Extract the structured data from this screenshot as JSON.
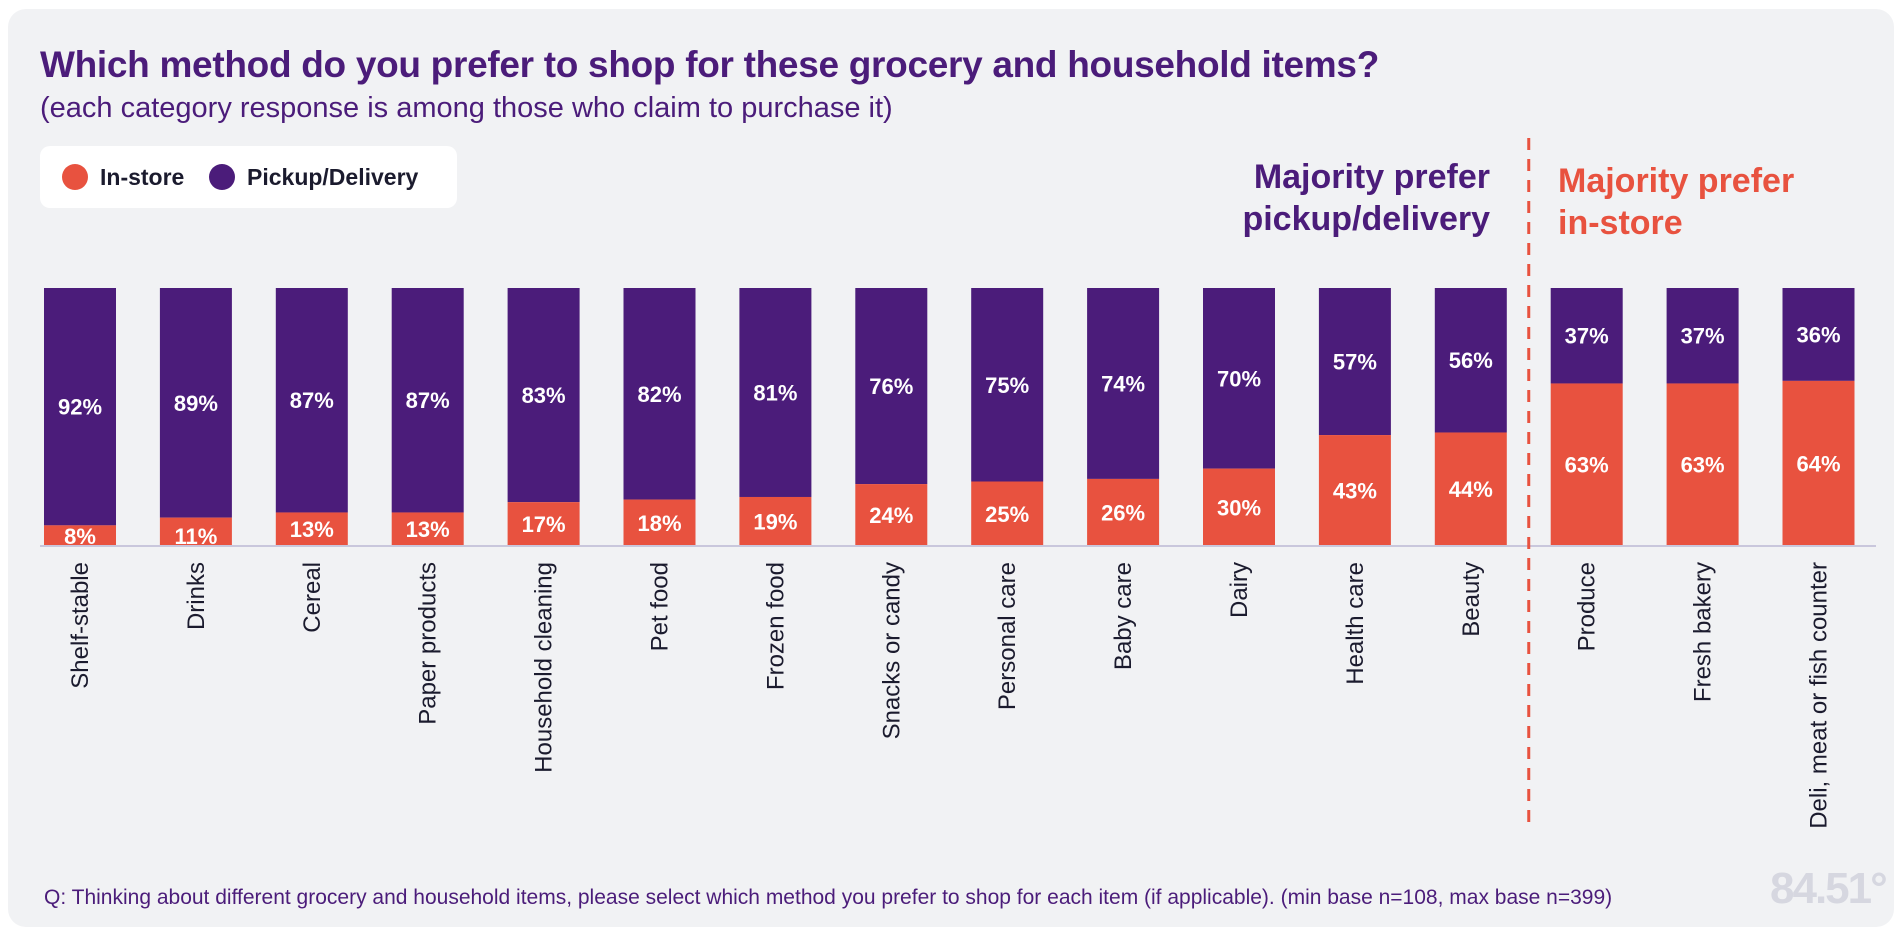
{
  "title": "Which method do you prefer to shop for these grocery and household items?",
  "subtitle": "(each category response is among those who claim to purchase it)",
  "legend": {
    "instore_label": "In-store",
    "pickup_label": "Pickup/Delivery"
  },
  "annotations": {
    "pickup_majority": [
      "Majority prefer",
      "pickup/delivery"
    ],
    "instore_majority": [
      "Majority prefer",
      "in-store"
    ]
  },
  "footnote": "Q: Thinking about different grocery and household items, please select which method you prefer to shop for each item (if applicable). (min base n=108, max base n=399)",
  "logo_text": "84.51°",
  "colors": {
    "instore": "#e8523f",
    "pickup": "#4b1c7a",
    "background": "#f1f2f4",
    "axis": "#c9c7dc"
  },
  "chart_data": {
    "type": "bar",
    "stacked": true,
    "orientation": "vertical",
    "ylim": [
      0,
      100
    ],
    "categories": [
      "Shelf-stable",
      "Drinks",
      "Cereal",
      "Paper products",
      "Household cleaning",
      "Pet food",
      "Frozen food",
      "Snacks or candy",
      "Personal care",
      "Baby care",
      "Dairy",
      "Health care",
      "Beauty",
      "Produce",
      "Fresh bakery",
      "Deli, meat or fish counter"
    ],
    "series": [
      {
        "name": "In-store",
        "values": [
          8,
          11,
          13,
          13,
          17,
          18,
          19,
          24,
          25,
          26,
          30,
          43,
          44,
          63,
          63,
          64
        ],
        "labels": [
          "8%",
          "11%",
          "13%",
          "13%",
          "17%",
          "18%",
          "19%",
          "24%",
          "25%",
          "26%",
          "30%",
          "43%",
          "44%",
          "63%",
          "63%",
          "64%"
        ]
      },
      {
        "name": "Pickup/Delivery",
        "values": [
          92,
          89,
          87,
          87,
          83,
          82,
          81,
          76,
          75,
          74,
          70,
          57,
          56,
          37,
          37,
          36
        ],
        "labels": [
          "92%",
          "89%",
          "87%",
          "87%",
          "83%",
          "82%",
          "81%",
          "76%",
          "75%",
          "74%",
          "70%",
          "57%",
          "56%",
          "37%",
          "37%",
          "36%"
        ]
      }
    ],
    "divider_after_index": 12
  }
}
